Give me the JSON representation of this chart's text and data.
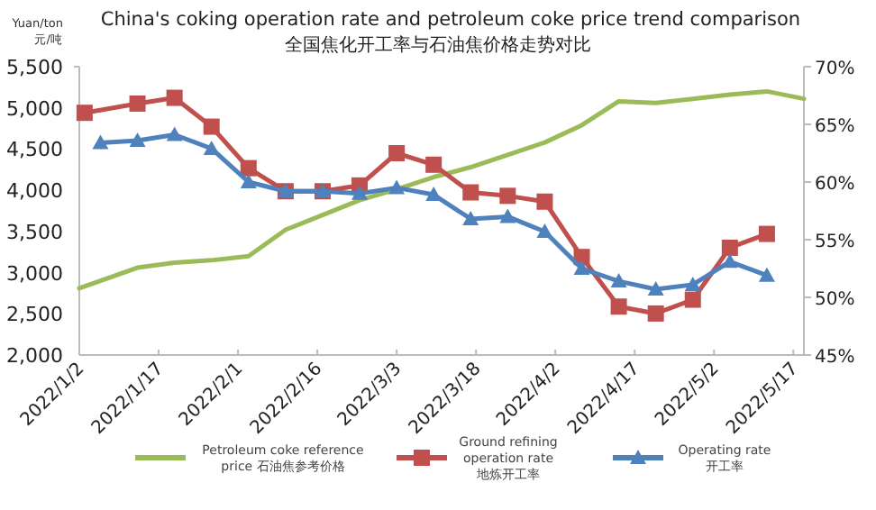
{
  "chart_data": {
    "type": "line",
    "title": "China's coking operation rate and petroleum coke price trend comparison",
    "subtitle": "全国焦化开工率与石油焦价格走势对比",
    "ylabel": "Yuan/ton 元/吨",
    "xlim": [
      "2022-01-02",
      "2022-05-19"
    ],
    "xticks": [
      {
        "value": "2022-01-02",
        "label": "2022/1/2"
      },
      {
        "value": "2022-01-17",
        "label": "2022/1/17"
      },
      {
        "value": "2022-02-01",
        "label": "2022/2/1"
      },
      {
        "value": "2022-02-16",
        "label": "2022/2/16"
      },
      {
        "value": "2022-03-03",
        "label": "2022/3/3"
      },
      {
        "value": "2022-03-18",
        "label": "2022/3/18"
      },
      {
        "value": "2022-04-02",
        "label": "2022/4/2"
      },
      {
        "value": "2022-04-17",
        "label": "2022/4/17"
      },
      {
        "value": "2022-05-02",
        "label": "2022/5/2"
      },
      {
        "value": "2022-05-17",
        "label": "2022/5/17"
      }
    ],
    "ylim": [
      2000,
      5500
    ],
    "yticks": [
      {
        "value": 2000,
        "label": "2,000"
      },
      {
        "value": 2500,
        "label": "2,500"
      },
      {
        "value": 3000,
        "label": "3,000"
      },
      {
        "value": 3500,
        "label": "3,500"
      },
      {
        "value": 4000,
        "label": "4,000"
      },
      {
        "value": 4500,
        "label": "4,500"
      },
      {
        "value": 5000,
        "label": "5,000"
      },
      {
        "value": 5500,
        "label": "5,500"
      }
    ],
    "y2lim": [
      45,
      70
    ],
    "y2ticks": [
      {
        "value": 45,
        "label": "45%"
      },
      {
        "value": 50,
        "label": "50%"
      },
      {
        "value": 55,
        "label": "55%"
      },
      {
        "value": 60,
        "label": "60%"
      },
      {
        "value": 65,
        "label": "65%"
      },
      {
        "value": 70,
        "label": "70%"
      }
    ],
    "grid": false,
    "legend": "bottom",
    "line_style": "solid",
    "series": [
      {
        "name": "Petroleum coke reference price 石油焦参考价格",
        "color": "#9bbb59",
        "marker": "none",
        "x": [
          "2022-01-02",
          "2022-01-06",
          "2022-01-13",
          "2022-01-20",
          "2022-01-27",
          "2022-02-03",
          "2022-02-10",
          "2022-02-17",
          "2022-02-24",
          "2022-03-03",
          "2022-03-10",
          "2022-03-17",
          "2022-03-24",
          "2022-03-31",
          "2022-04-07",
          "2022-04-14",
          "2022-04-21",
          "2022-04-28",
          "2022-05-05",
          "2022-05-12",
          "2022-05-19"
        ],
        "values": [
          2810,
          2900,
          3060,
          3120,
          3150,
          3200,
          3520,
          3700,
          3880,
          4010,
          4160,
          4280,
          4430,
          4580,
          4790,
          5080,
          5060,
          5110,
          5160,
          5200,
          5110
        ]
      },
      {
        "name": "Ground refining operation rate 地炼开工率",
        "color": "#c0504d",
        "marker": "square",
        "x": [
          "2022-01-03",
          "2022-01-13",
          "2022-01-20",
          "2022-01-27",
          "2022-02-03",
          "2022-02-10",
          "2022-02-17",
          "2022-02-24",
          "2022-03-03",
          "2022-03-10",
          "2022-03-17",
          "2022-03-24",
          "2022-03-31",
          "2022-04-07",
          "2022-04-14",
          "2022-04-21",
          "2022-04-28",
          "2022-05-05",
          "2022-05-12"
        ],
        "values": [
          66.0,
          66.8,
          67.3,
          64.8,
          61.2,
          59.2,
          59.2,
          59.7,
          62.5,
          61.5,
          59.1,
          58.8,
          58.3,
          53.5,
          49.2,
          48.6,
          49.8,
          54.3,
          55.5
        ],
        "axis": "y2"
      },
      {
        "name": "Operating rate 开工率",
        "color": "#4f81bd",
        "marker": "triangle",
        "x": [
          "2022-01-06",
          "2022-01-13",
          "2022-01-20",
          "2022-01-27",
          "2022-02-03",
          "2022-02-10",
          "2022-02-17",
          "2022-02-24",
          "2022-03-03",
          "2022-03-10",
          "2022-03-17",
          "2022-03-24",
          "2022-03-31",
          "2022-04-07",
          "2022-04-14",
          "2022-04-21",
          "2022-04-28",
          "2022-05-05",
          "2022-05-12"
        ],
        "values": [
          63.4,
          63.6,
          64.1,
          62.9,
          60.0,
          59.2,
          59.2,
          59.0,
          59.5,
          58.9,
          56.8,
          57.0,
          55.7,
          52.5,
          51.4,
          50.7,
          51.1,
          53.1,
          51.9
        ],
        "axis": "y2"
      }
    ]
  }
}
